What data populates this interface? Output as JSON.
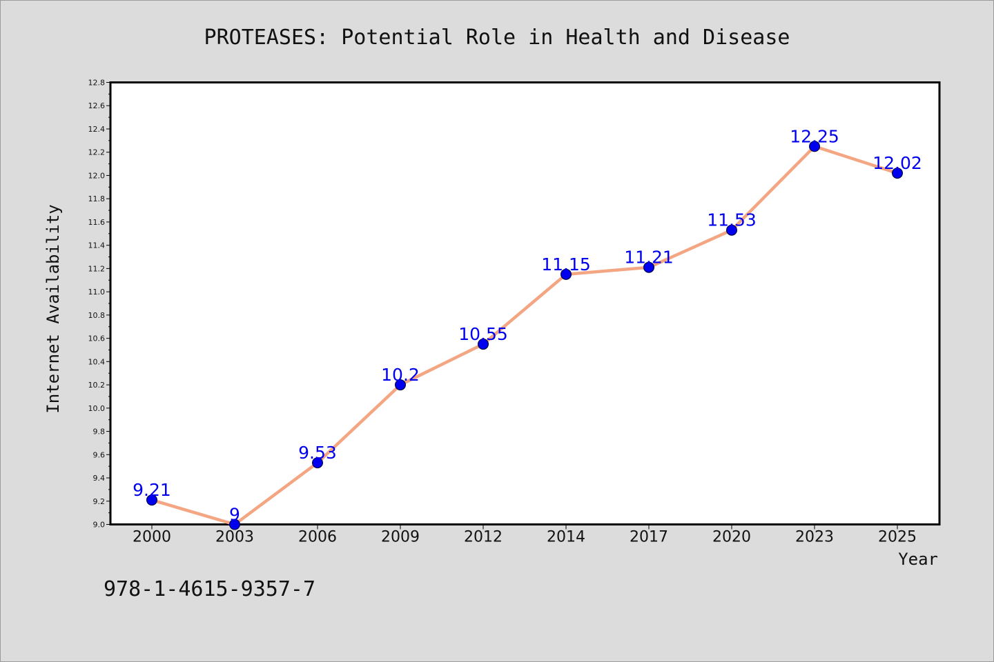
{
  "chart_data": {
    "type": "line",
    "title": "PROTEASES: Potential Role in Health and Disease",
    "xlabel": "Year",
    "ylabel": "Internet Availability",
    "categories": [
      "2000",
      "2003",
      "2006",
      "2009",
      "2012",
      "2014",
      "2017",
      "2020",
      "2023",
      "2025"
    ],
    "series": [
      {
        "values": [
          9.21,
          9,
          9.53,
          10.2,
          10.55,
          11.15,
          11.21,
          11.53,
          12.25,
          12.02
        ],
        "data_labels": [
          "9.21",
          "9",
          "9.53",
          "10.2",
          "10.55",
          "11.15",
          "11.21",
          "11.53",
          "12.25",
          "12.02"
        ]
      }
    ],
    "ylim": [
      9.0,
      12.8
    ],
    "yticks": [
      "9.0",
      "9.2",
      "9.4",
      "9.6",
      "9.8",
      "10.0",
      "10.2",
      "10.4",
      "10.6",
      "10.8",
      "11.0",
      "11.2",
      "11.4",
      "11.6",
      "11.8",
      "12.0",
      "12.2",
      "12.4",
      "12.6",
      "12.8"
    ],
    "grid": false,
    "legend": "none",
    "colors": {
      "line": "#f4a582",
      "marker": "#0000ee",
      "data_label": "#0000ee",
      "plot_background": "#ffffff",
      "figure_background": "#dcdcdc"
    }
  },
  "footnote": "978-1-4615-9357-7"
}
